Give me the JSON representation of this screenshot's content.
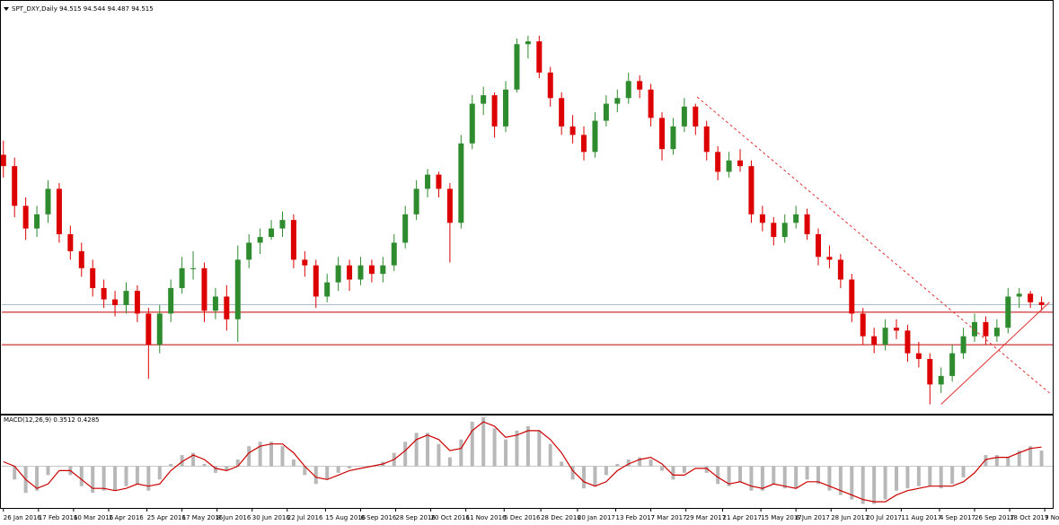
{
  "chart_data": {
    "type": "candlestick",
    "title": "SPT_DXY,Daily 94.515 94.544 94.487 94.515",
    "colors": {
      "up": "#2e8b2e",
      "down": "#dd0000"
    },
    "xlim": [
      "2016-01-25",
      "2017-11-14"
    ],
    "ylim": [
      90.7,
      105.1
    ],
    "xticks": [
      {
        "value": "2016-01-26",
        "label": "26 Jan 2016"
      },
      {
        "value": "2016-02-17",
        "label": "17 Feb 2016"
      },
      {
        "value": "2016-03-10",
        "label": "10 Mar 2016"
      },
      {
        "value": "2016-04-01",
        "label": "1 Apr 2016"
      },
      {
        "value": "2016-04-25",
        "label": "25 Apr 2016"
      },
      {
        "value": "2016-05-17",
        "label": "17 May 2016"
      },
      {
        "value": "2016-06-08",
        "label": "8 Jun 2016"
      },
      {
        "value": "2016-06-30",
        "label": "30 Jun 2016"
      },
      {
        "value": "2016-07-22",
        "label": "22 Jul 2016"
      },
      {
        "value": "2016-08-15",
        "label": "15 Aug 2016"
      },
      {
        "value": "2016-09-06",
        "label": "6 Sep 2016"
      },
      {
        "value": "2016-09-28",
        "label": "28 Sep 2016"
      },
      {
        "value": "2016-10-20",
        "label": "20 Oct 2016"
      },
      {
        "value": "2016-11-11",
        "label": "11 Nov 2016"
      },
      {
        "value": "2016-12-05",
        "label": "5 Dec 2016"
      },
      {
        "value": "2016-12-28",
        "label": "28 Dec 2016"
      },
      {
        "value": "2017-01-20",
        "label": "20 Jan 2017"
      },
      {
        "value": "2017-02-13",
        "label": "13 Feb 2017"
      },
      {
        "value": "2017-03-07",
        "label": "7 Mar 2017"
      },
      {
        "value": "2017-03-29",
        "label": "29 Mar 2017"
      },
      {
        "value": "2017-04-21",
        "label": "21 Apr 2017"
      },
      {
        "value": "2017-05-15",
        "label": "15 May 2017"
      },
      {
        "value": "2017-06-06",
        "label": "6 Jun 2017"
      },
      {
        "value": "2017-06-28",
        "label": "28 Jun 2017"
      },
      {
        "value": "2017-07-20",
        "label": "20 Jul 2017"
      },
      {
        "value": "2017-08-11",
        "label": "11 Aug 2017"
      },
      {
        "value": "2017-09-04",
        "label": "4 Sep 2017"
      },
      {
        "value": "2017-09-26",
        "label": "26 Sep 2017"
      },
      {
        "value": "2017-10-18",
        "label": "18 Oct 2017"
      },
      {
        "value": "2017-11-09",
        "label": "9 Nov 2017"
      }
    ],
    "x": [
      "2016-01-26",
      "2016-02-02",
      "2016-02-09",
      "2016-02-16",
      "2016-02-23",
      "2016-03-01",
      "2016-03-08",
      "2016-03-15",
      "2016-03-22",
      "2016-03-29",
      "2016-04-05",
      "2016-04-12",
      "2016-04-19",
      "2016-04-26",
      "2016-05-03",
      "2016-05-10",
      "2016-05-17",
      "2016-05-24",
      "2016-05-31",
      "2016-06-07",
      "2016-06-14",
      "2016-06-21",
      "2016-06-28",
      "2016-07-05",
      "2016-07-12",
      "2016-07-19",
      "2016-07-26",
      "2016-08-02",
      "2016-08-09",
      "2016-08-16",
      "2016-08-23",
      "2016-08-30",
      "2016-09-06",
      "2016-09-13",
      "2016-09-20",
      "2016-09-27",
      "2016-10-04",
      "2016-10-11",
      "2016-10-18",
      "2016-10-25",
      "2016-11-01",
      "2016-11-08",
      "2016-11-15",
      "2016-11-22",
      "2016-11-29",
      "2016-12-06",
      "2016-12-13",
      "2016-12-20",
      "2016-12-27",
      "2017-01-03",
      "2017-01-10",
      "2017-01-17",
      "2017-01-24",
      "2017-01-31",
      "2017-02-07",
      "2017-02-14",
      "2017-02-21",
      "2017-02-28",
      "2017-03-07",
      "2017-03-14",
      "2017-03-21",
      "2017-03-28",
      "2017-04-04",
      "2017-04-11",
      "2017-04-18",
      "2017-04-25",
      "2017-05-02",
      "2017-05-09",
      "2017-05-16",
      "2017-05-23",
      "2017-05-30",
      "2017-06-06",
      "2017-06-13",
      "2017-06-20",
      "2017-06-27",
      "2017-07-04",
      "2017-07-11",
      "2017-07-18",
      "2017-07-25",
      "2017-08-01",
      "2017-08-08",
      "2017-08-15",
      "2017-08-22",
      "2017-08-29",
      "2017-09-05",
      "2017-09-12",
      "2017-09-19",
      "2017-09-26",
      "2017-10-03",
      "2017-10-10",
      "2017-10-17",
      "2017-10-24",
      "2017-10-31",
      "2017-11-07"
    ],
    "ohlc": [
      [
        99.8,
        100.3,
        99.0,
        99.4
      ],
      [
        99.4,
        99.7,
        97.6,
        98.0
      ],
      [
        98.0,
        98.3,
        96.8,
        97.2
      ],
      [
        97.2,
        98.0,
        96.9,
        97.7
      ],
      [
        97.7,
        98.9,
        97.4,
        98.6
      ],
      [
        98.6,
        98.8,
        96.7,
        97.0
      ],
      [
        97.0,
        97.3,
        96.1,
        96.4
      ],
      [
        96.4,
        96.7,
        95.5,
        95.8
      ],
      [
        95.8,
        96.1,
        94.8,
        95.1
      ],
      [
        95.1,
        95.4,
        94.4,
        94.7
      ],
      [
        94.7,
        95.0,
        94.1,
        94.5
      ],
      [
        94.5,
        95.3,
        94.2,
        95.0
      ],
      [
        95.0,
        95.2,
        93.9,
        94.2
      ],
      [
        94.2,
        94.4,
        91.9,
        93.1
      ],
      [
        93.1,
        94.5,
        92.8,
        94.2
      ],
      [
        94.2,
        95.4,
        93.9,
        95.1
      ],
      [
        95.1,
        96.2,
        94.9,
        95.8
      ],
      [
        95.8,
        96.4,
        95.4,
        95.8
      ],
      [
        95.8,
        96.0,
        93.9,
        94.3
      ],
      [
        94.3,
        95.1,
        94.0,
        94.8
      ],
      [
        94.8,
        95.2,
        93.6,
        94.0
      ],
      [
        94.0,
        96.6,
        93.2,
        96.1
      ],
      [
        96.1,
        97.0,
        95.8,
        96.7
      ],
      [
        96.7,
        97.2,
        96.3,
        96.9
      ],
      [
        96.9,
        97.5,
        96.8,
        97.2
      ],
      [
        97.2,
        97.8,
        96.9,
        97.5
      ],
      [
        97.5,
        97.7,
        95.8,
        96.1
      ],
      [
        96.1,
        96.4,
        95.5,
        95.9
      ],
      [
        95.9,
        96.1,
        94.4,
        94.8
      ],
      [
        94.8,
        95.6,
        94.6,
        95.3
      ],
      [
        95.3,
        96.2,
        95.0,
        95.9
      ],
      [
        95.9,
        96.1,
        95.0,
        95.4
      ],
      [
        95.4,
        96.2,
        95.2,
        95.9
      ],
      [
        95.9,
        96.1,
        95.3,
        95.6
      ],
      [
        95.6,
        96.2,
        95.3,
        95.9
      ],
      [
        95.9,
        97.0,
        95.7,
        96.7
      ],
      [
        96.7,
        98.0,
        96.5,
        97.7
      ],
      [
        97.7,
        98.9,
        97.5,
        98.6
      ],
      [
        98.6,
        99.3,
        98.3,
        99.1
      ],
      [
        99.1,
        99.2,
        98.3,
        98.6
      ],
      [
        98.6,
        98.8,
        96.0,
        97.4
      ],
      [
        97.4,
        100.5,
        97.2,
        100.2
      ],
      [
        100.2,
        101.9,
        100.0,
        101.6
      ],
      [
        101.6,
        102.2,
        101.2,
        101.9
      ],
      [
        101.9,
        102.0,
        100.4,
        100.8
      ],
      [
        100.8,
        102.4,
        100.6,
        102.1
      ],
      [
        102.1,
        103.9,
        102.0,
        103.7
      ],
      [
        103.7,
        104.0,
        103.2,
        103.8
      ],
      [
        103.8,
        104.0,
        102.5,
        102.7
      ],
      [
        102.7,
        102.9,
        101.5,
        101.8
      ],
      [
        101.8,
        102.0,
        100.5,
        100.8
      ],
      [
        100.8,
        101.2,
        100.2,
        100.5
      ],
      [
        100.5,
        100.8,
        99.6,
        99.9
      ],
      [
        99.9,
        101.3,
        99.7,
        101.0
      ],
      [
        101.0,
        101.9,
        100.8,
        101.6
      ],
      [
        101.6,
        102.1,
        101.3,
        101.8
      ],
      [
        101.8,
        102.7,
        101.6,
        102.4
      ],
      [
        102.4,
        102.6,
        101.8,
        102.1
      ],
      [
        102.1,
        102.3,
        100.8,
        101.1
      ],
      [
        101.1,
        101.3,
        99.6,
        100.0
      ],
      [
        100.0,
        101.1,
        99.8,
        100.8
      ],
      [
        100.8,
        101.8,
        100.6,
        101.5
      ],
      [
        101.5,
        101.6,
        100.5,
        100.8
      ],
      [
        100.8,
        101.0,
        99.6,
        99.9
      ],
      [
        99.9,
        100.1,
        98.9,
        99.2
      ],
      [
        99.2,
        99.9,
        99.0,
        99.6
      ],
      [
        99.6,
        100.0,
        99.2,
        99.4
      ],
      [
        99.4,
        99.6,
        97.4,
        97.7
      ],
      [
        97.7,
        98.0,
        97.1,
        97.4
      ],
      [
        97.4,
        97.6,
        96.6,
        96.9
      ],
      [
        96.9,
        97.7,
        96.7,
        97.4
      ],
      [
        97.4,
        98.0,
        97.2,
        97.7
      ],
      [
        97.7,
        97.9,
        96.8,
        97.0
      ],
      [
        97.0,
        97.2,
        95.9,
        96.2
      ],
      [
        96.2,
        96.6,
        95.8,
        96.1
      ],
      [
        96.1,
        96.3,
        95.1,
        95.4
      ],
      [
        95.4,
        95.6,
        93.9,
        94.2
      ],
      [
        94.2,
        94.4,
        93.1,
        93.4
      ],
      [
        93.4,
        93.7,
        92.8,
        93.1
      ],
      [
        93.1,
        94.0,
        92.9,
        93.7
      ],
      [
        93.7,
        94.0,
        93.3,
        93.6
      ],
      [
        93.6,
        93.8,
        92.5,
        92.8
      ],
      [
        92.8,
        93.2,
        92.3,
        92.6
      ],
      [
        92.6,
        92.8,
        91.0,
        91.7
      ],
      [
        91.7,
        92.3,
        91.4,
        92.0
      ],
      [
        92.0,
        93.1,
        91.8,
        92.8
      ],
      [
        92.8,
        93.7,
        92.6,
        93.4
      ],
      [
        93.4,
        94.2,
        93.2,
        93.9
      ],
      [
        93.9,
        94.1,
        93.1,
        93.4
      ],
      [
        93.4,
        94.0,
        93.2,
        93.7
      ],
      [
        93.7,
        95.1,
        93.5,
        94.8
      ],
      [
        94.8,
        95.1,
        94.4,
        94.9
      ],
      [
        94.9,
        95.0,
        94.4,
        94.6
      ],
      [
        94.6,
        94.8,
        94.3,
        94.5
      ]
    ],
    "hlines": [
      {
        "value": 94.515,
        "color": "#a8bccc"
      },
      {
        "value": 94.25,
        "color": "#c00000"
      },
      {
        "value": 93.1,
        "color": "#c00000"
      }
    ],
    "trendlines": [
      {
        "from": [
          "2017-04-05",
          101.84
        ],
        "to": [
          "2017-11-12",
          91.4
        ],
        "dashed": true,
        "color": "#e03030"
      },
      {
        "from": [
          "2017-09-05",
          91.0
        ],
        "to": [
          "2017-11-12",
          94.6
        ],
        "dashed": false,
        "color": "#e03030"
      }
    ],
    "macd": {
      "title": "MACD(12,26,9) 0.3512 0.4285",
      "ylim": [
        -0.92,
        1.08
      ],
      "histogram_color": "#b8b8b8",
      "signal_color": "#cc0000",
      "histogram": [
        0.0,
        -0.3,
        -0.6,
        -0.55,
        -0.2,
        0.0,
        -0.2,
        -0.45,
        -0.6,
        -0.55,
        -0.55,
        -0.45,
        -0.4,
        -0.55,
        -0.3,
        0.05,
        0.25,
        0.3,
        0.05,
        -0.15,
        -0.1,
        0.15,
        0.45,
        0.55,
        0.55,
        0.45,
        0.15,
        -0.2,
        -0.4,
        -0.3,
        -0.15,
        -0.05,
        0.0,
        0.0,
        0.1,
        0.3,
        0.55,
        0.75,
        0.75,
        0.5,
        0.2,
        0.6,
        1.0,
        1.1,
        0.85,
        0.6,
        0.8,
        0.9,
        0.8,
        0.5,
        0.1,
        -0.3,
        -0.5,
        -0.45,
        -0.2,
        0.05,
        0.15,
        0.2,
        0.15,
        -0.1,
        -0.3,
        -0.15,
        0.0,
        -0.15,
        -0.4,
        -0.45,
        -0.35,
        -0.55,
        -0.55,
        -0.4,
        -0.5,
        -0.5,
        -0.3,
        -0.4,
        -0.55,
        -0.65,
        -0.75,
        -0.85,
        -0.85,
        -0.75,
        -0.55,
        -0.5,
        -0.45,
        -0.45,
        -0.5,
        -0.4,
        -0.25,
        0.0,
        0.25,
        0.25,
        0.2,
        0.35,
        0.45,
        0.35
      ],
      "signal": [
        0.1,
        0.0,
        -0.3,
        -0.5,
        -0.4,
        -0.1,
        -0.1,
        -0.3,
        -0.5,
        -0.5,
        -0.55,
        -0.5,
        -0.4,
        -0.45,
        -0.4,
        -0.1,
        0.1,
        0.25,
        0.15,
        -0.05,
        -0.1,
        0.0,
        0.3,
        0.45,
        0.5,
        0.5,
        0.3,
        0.0,
        -0.25,
        -0.3,
        -0.2,
        -0.1,
        -0.05,
        0.0,
        0.05,
        0.15,
        0.35,
        0.6,
        0.7,
        0.6,
        0.35,
        0.4,
        0.8,
        1.0,
        0.9,
        0.65,
        0.7,
        0.8,
        0.8,
        0.6,
        0.3,
        -0.1,
        -0.35,
        -0.45,
        -0.35,
        -0.1,
        0.05,
        0.15,
        0.2,
        0.05,
        -0.2,
        -0.2,
        -0.05,
        -0.05,
        -0.25,
        -0.4,
        -0.35,
        -0.45,
        -0.5,
        -0.4,
        -0.45,
        -0.5,
        -0.35,
        -0.35,
        -0.45,
        -0.55,
        -0.65,
        -0.75,
        -0.8,
        -0.8,
        -0.65,
        -0.55,
        -0.5,
        -0.45,
        -0.45,
        -0.45,
        -0.35,
        -0.15,
        0.15,
        0.2,
        0.2,
        0.3,
        0.4,
        0.43
      ]
    }
  }
}
